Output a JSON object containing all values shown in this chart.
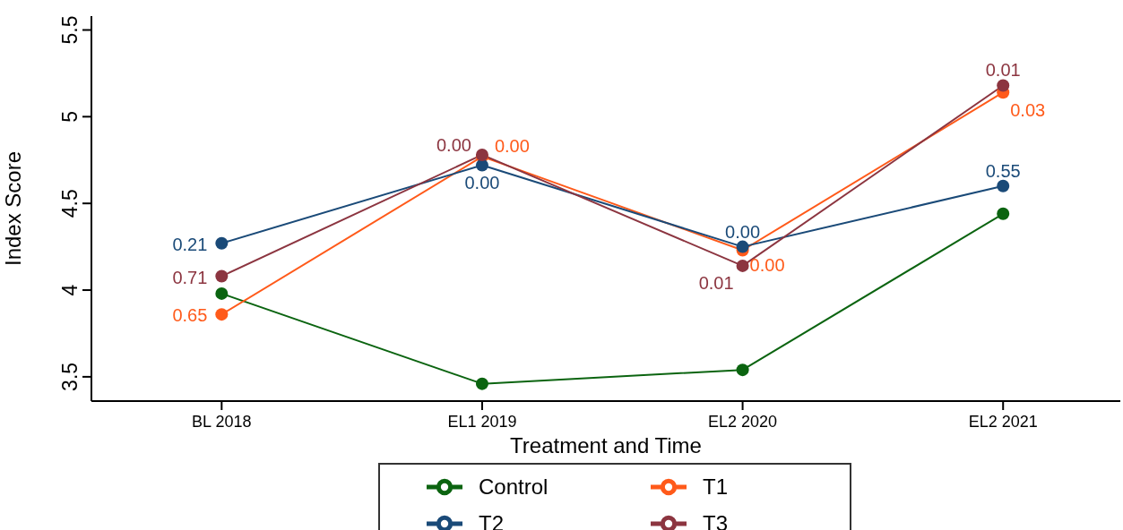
{
  "chart_data": {
    "type": "line",
    "xlabel": "Treatment and Time",
    "ylabel": "Index Score",
    "categories": [
      "BL 2018",
      "EL1 2019",
      "EL2 2020",
      "EL2 2021"
    ],
    "series": [
      {
        "name": "Control",
        "color": "#0b6410",
        "values": [
          3.98,
          3.46,
          3.54,
          4.44
        ]
      },
      {
        "name": "T1",
        "color": "#ff5a1a",
        "values": [
          3.86,
          4.77,
          4.23,
          5.14
        ]
      },
      {
        "name": "T2",
        "color": "#1a4a78",
        "values": [
          4.27,
          4.72,
          4.25,
          4.6
        ]
      },
      {
        "name": "T3",
        "color": "#8c3540",
        "values": [
          4.08,
          4.78,
          4.14,
          5.18
        ]
      }
    ],
    "annotations": [
      {
        "text": "0.65",
        "x": "BL 2018",
        "y": 3.86
      },
      {
        "text": "0.00",
        "x": "EL1 2019",
        "y": 4.77
      },
      {
        "text": "0.00",
        "x": "EL2 2020",
        "y": 4.23
      },
      {
        "text": "0.03",
        "x": "EL2 2021",
        "y": 5.14
      },
      {
        "text": "0.21",
        "x": "BL 2018",
        "y": 4.27
      },
      {
        "text": "0.00",
        "x": "EL1 2019",
        "y": 4.72
      },
      {
        "text": "0.00",
        "x": "EL2 2020",
        "y": 4.25
      },
      {
        "text": "0.55",
        "x": "EL2 2021",
        "y": 4.6
      },
      {
        "text": "0.71",
        "x": "BL 2018",
        "y": 4.08
      },
      {
        "text": "0.00",
        "x": "EL1 2019",
        "y": 4.78
      },
      {
        "text": "0.01",
        "x": "EL2 2020",
        "y": 4.14
      },
      {
        "text": "0.01",
        "x": "EL2 2021",
        "y": 5.18
      }
    ],
    "ylim": [
      3.36,
      5.58
    ],
    "yticks": [
      3.5,
      4,
      4.5,
      5,
      5.5
    ],
    "grid": false,
    "legend": "bottom",
    "marker": "circle",
    "line_style": "solid"
  }
}
